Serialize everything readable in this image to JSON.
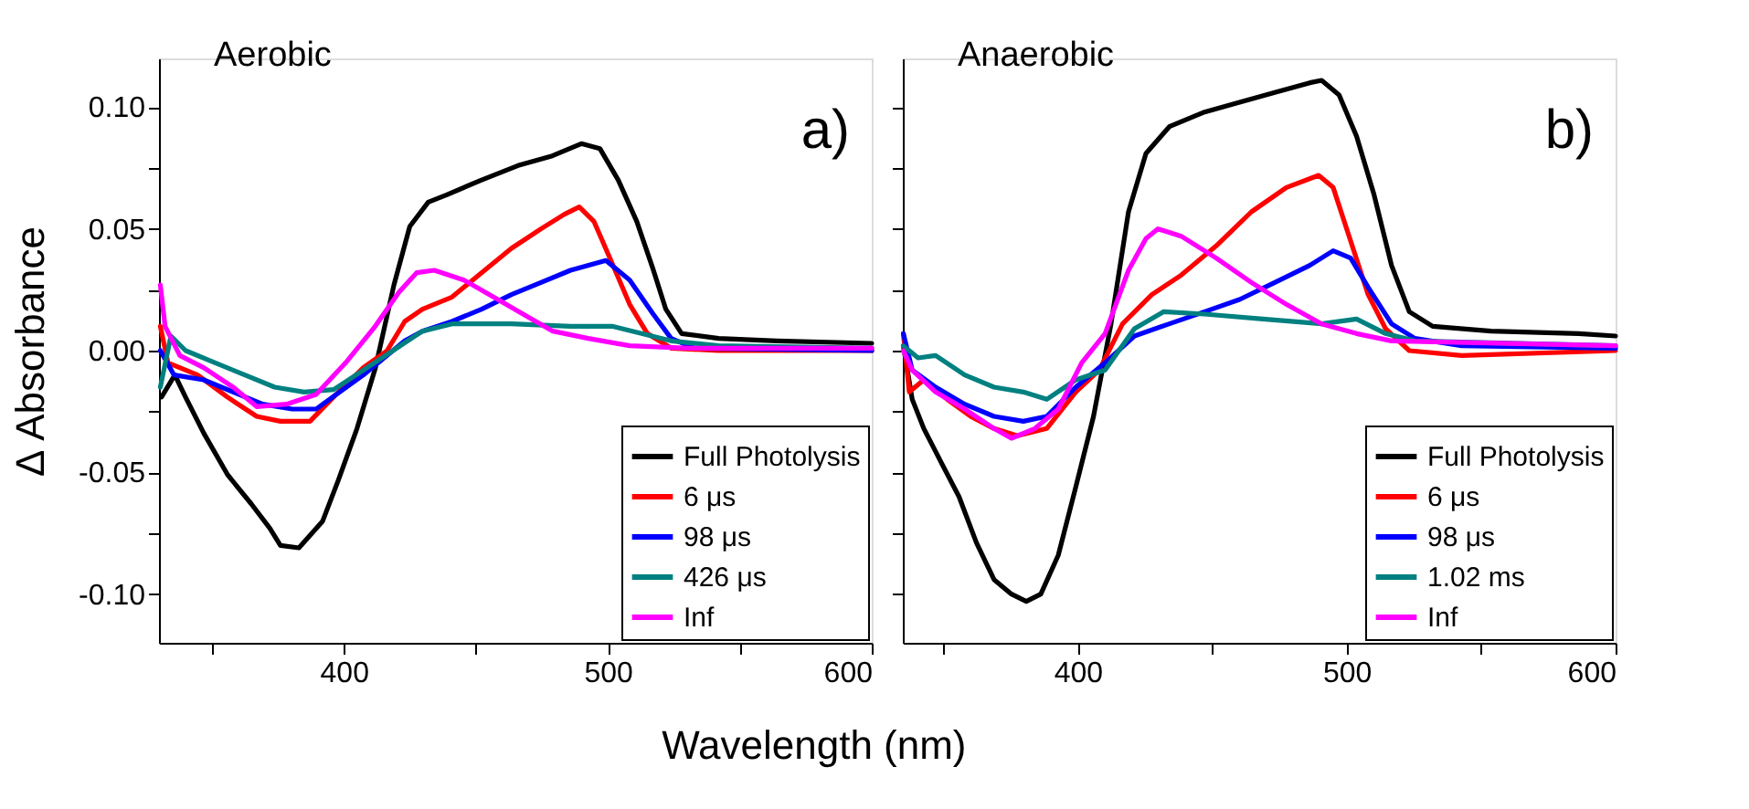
{
  "chart_data": [
    {
      "type": "line",
      "xlabel": "Wavelength (nm)",
      "ylabel": "Δ Absorbance",
      "annotations": [
        "Aerobic",
        "a)"
      ],
      "xlim": [
        330,
        600
      ],
      "xticks": [
        {
          "value": 350,
          "label": null
        },
        400,
        {
          "value": 450,
          "label": null
        },
        500,
        {
          "value": 550,
          "label": null
        },
        600
      ],
      "ylim": [
        -0.12,
        0.12
      ],
      "yticks": [
        {
          "value": -0.1,
          "label": "-0.10"
        },
        {
          "value": -0.075,
          "label": null
        },
        {
          "value": -0.05,
          "label": "-0.05"
        },
        {
          "value": -0.025,
          "label": null
        },
        {
          "value": 0,
          "label": "0.00"
        },
        {
          "value": 0.025,
          "label": null
        },
        {
          "value": 0.05,
          "label": "0.05"
        },
        {
          "value": 0.075,
          "label": null
        },
        {
          "value": 0.1,
          "label": "0.10"
        }
      ],
      "grid": false,
      "legend": "bottom right",
      "line_style": "solid",
      "marker": "none",
      "series": [
        {
          "name": "Full Photolysis",
          "color": "#000000",
          "x": [
            331,
            336,
            340,
            347,
            356,
            365,
            372,
            376,
            383,
            392,
            398,
            405,
            412,
            419,
            425,
            432,
            439,
            452,
            466,
            479,
            490,
            497,
            504,
            511,
            517,
            522,
            528,
            542,
            564,
            600
          ],
          "values": [
            -0.019,
            -0.01,
            -0.019,
            -0.034,
            -0.051,
            -0.063,
            -0.073,
            -0.08,
            -0.081,
            -0.07,
            -0.053,
            -0.032,
            -0.007,
            0.027,
            0.051,
            0.061,
            0.064,
            0.07,
            0.076,
            0.08,
            0.085,
            0.083,
            0.07,
            0.053,
            0.034,
            0.017,
            0.007,
            0.005,
            0.004,
            0.003
          ]
        },
        {
          "name": "6 μs",
          "color": "#ff0000",
          "x": [
            330.5,
            333.4,
            344.6,
            355.8,
            367,
            376,
            387.2,
            396.2,
            407.4,
            416.4,
            423.1,
            429.8,
            441,
            452.2,
            463.5,
            474.7,
            483.6,
            489.2,
            494.8,
            501.6,
            508.3,
            515,
            524,
            541.9,
            600
          ],
          "values": [
            0.01,
            -0.005,
            -0.01,
            -0.019,
            -0.027,
            -0.029,
            -0.029,
            -0.019,
            -0.007,
            0.0,
            0.012,
            0.017,
            0.022,
            0.032,
            0.042,
            0.05,
            0.056,
            0.059,
            0.053,
            0.036,
            0.019,
            0.007,
            0.001,
            0.0,
            0.0
          ]
        },
        {
          "name": "98 μs",
          "color": "#0000ff",
          "x": [
            330.5,
            335.7,
            346.9,
            358.1,
            369.3,
            380.5,
            389.5,
            398.4,
            407.4,
            416.4,
            423.1,
            429.8,
            441,
            452.2,
            463.5,
            474.7,
            485.9,
            499.3,
            508.3,
            517.2,
            524,
            532.9,
            600
          ],
          "values": [
            0.0,
            -0.01,
            -0.012,
            -0.017,
            -0.022,
            -0.024,
            -0.024,
            -0.017,
            -0.01,
            -0.002,
            0.004,
            0.008,
            0.012,
            0.017,
            0.023,
            0.028,
            0.033,
            0.037,
            0.029,
            0.015,
            0.005,
            0.001,
            0.0
          ]
        },
        {
          "name": "426 μs",
          "color": "#008080",
          "x": [
            330.5,
            334.5,
            340.1,
            351.3,
            362.5,
            373.8,
            385,
            396.2,
            407.4,
            418.6,
            429.8,
            441,
            463.5,
            485.9,
            501.6,
            512.8,
            524,
            541.9,
            600
          ],
          "values": [
            -0.015,
            0.006,
            0.0,
            -0.005,
            -0.01,
            -0.015,
            -0.017,
            -0.016,
            -0.008,
            0.0,
            0.008,
            0.011,
            0.011,
            0.01,
            0.01,
            0.007,
            0.004,
            0.002,
            0.001
          ]
        },
        {
          "name": "Inf",
          "color": "#ff00ff",
          "x": [
            330.5,
            332.3,
            337.9,
            346.9,
            358.1,
            367,
            378.3,
            389.5,
            400.7,
            411.9,
            420.9,
            427.6,
            434.3,
            445.5,
            456.7,
            467.9,
            479.2,
            492.6,
            508.3,
            530.7,
            600
          ],
          "values": [
            0.027,
            0.01,
            -0.002,
            -0.007,
            -0.015,
            -0.023,
            -0.022,
            -0.018,
            -0.005,
            0.01,
            0.024,
            0.032,
            0.033,
            0.029,
            0.022,
            0.015,
            0.008,
            0.005,
            0.002,
            0.001,
            0.001
          ]
        }
      ]
    },
    {
      "type": "line",
      "annotations": [
        "Anaerobic",
        "b)"
      ],
      "tick_labels": "x",
      "xlim": [
        335,
        600
      ],
      "xticks": [
        {
          "value": 350,
          "label": null
        },
        400,
        {
          "value": 450,
          "label": null
        },
        500,
        {
          "value": 550,
          "label": null
        },
        600
      ],
      "ylim": [
        -0.12,
        0.12
      ],
      "yticks": [
        {
          "value": -0.1,
          "label": null
        },
        {
          "value": -0.075,
          "label": null
        },
        {
          "value": -0.05,
          "label": null
        },
        {
          "value": -0.025,
          "label": null
        },
        {
          "value": 0,
          "label": null
        },
        {
          "value": 0.025,
          "label": null
        },
        {
          "value": 0.05,
          "label": null
        },
        {
          "value": 0.075,
          "label": null
        },
        {
          "value": 0.1,
          "label": null
        }
      ],
      "grid": false,
      "legend": "bottom right",
      "line_style": "solid",
      "marker": "none",
      "series": [
        {
          "name": "Full Photolysis",
          "color": "#000000",
          "x": [
            335.2,
            338.5,
            342.8,
            349.3,
            355.9,
            362.4,
            368.9,
            375.4,
            380.9,
            386.3,
            392.8,
            399.3,
            405.9,
            412.4,
            418.9,
            425.4,
            434.1,
            447.2,
            460.2,
            473.3,
            486.3,
            490.7,
            497.2,
            503.7,
            510.2,
            516.7,
            523.3,
            532,
            553.7,
            586.3,
            600
          ],
          "values": [
            0.002,
            -0.02,
            -0.032,
            -0.046,
            -0.06,
            -0.079,
            -0.094,
            -0.1,
            -0.103,
            -0.1,
            -0.084,
            -0.056,
            -0.027,
            0.011,
            0.057,
            0.081,
            0.092,
            0.098,
            0.102,
            0.106,
            0.11,
            0.111,
            0.105,
            0.088,
            0.064,
            0.035,
            0.016,
            0.01,
            0.008,
            0.007,
            0.006
          ]
        },
        {
          "name": "6 μs",
          "color": "#ff0000",
          "x": [
            335.2,
            337.4,
            342.8,
            351.5,
            360.2,
            368.9,
            377.6,
            388.5,
            399.3,
            408,
            416.7,
            427.6,
            438.5,
            451.5,
            464.6,
            477.6,
            489.6,
            495,
            501.5,
            508,
            514.5,
            523.3,
            542.8,
            600
          ],
          "values": [
            0.007,
            -0.017,
            -0.012,
            -0.02,
            -0.027,
            -0.032,
            -0.035,
            -0.032,
            -0.017,
            -0.008,
            0.011,
            0.023,
            0.031,
            0.043,
            0.057,
            0.067,
            0.072,
            0.067,
            0.045,
            0.023,
            0.009,
            0.0,
            -0.002,
            0.0
          ]
        },
        {
          "name": "98 μs",
          "color": "#0000ff",
          "x": [
            335.2,
            338.5,
            347.2,
            358,
            368.9,
            379.8,
            388.5,
            399.3,
            410.2,
            421.1,
            434.1,
            447.2,
            460.2,
            473.3,
            486.3,
            495,
            501.5,
            508,
            516.7,
            525.4,
            542.8,
            600
          ],
          "values": [
            0.007,
            -0.008,
            -0.015,
            -0.022,
            -0.027,
            -0.029,
            -0.027,
            -0.015,
            -0.005,
            0.006,
            0.011,
            0.016,
            0.021,
            0.028,
            0.035,
            0.041,
            0.038,
            0.026,
            0.011,
            0.005,
            0.002,
            0.001
          ]
        },
        {
          "name": "1.02 ms",
          "color": "#008080",
          "x": [
            335.2,
            340.7,
            347.2,
            358,
            368.9,
            379.8,
            388.5,
            399.3,
            410.2,
            421.1,
            432,
            447.2,
            468.9,
            490.7,
            503.7,
            514.5,
            525.4,
            600
          ],
          "values": [
            0.002,
            -0.003,
            -0.002,
            -0.01,
            -0.015,
            -0.017,
            -0.02,
            -0.012,
            -0.008,
            0.009,
            0.016,
            0.015,
            0.013,
            0.011,
            0.013,
            0.007,
            0.004,
            0.002
          ]
        },
        {
          "name": "Inf",
          "color": "#ff00ff",
          "x": [
            335.2,
            338.5,
            347.2,
            358,
            368.9,
            375.4,
            384.1,
            392.8,
            401.5,
            410.2,
            418.9,
            425.4,
            429.8,
            438.5,
            451.5,
            464.6,
            477.6,
            490.7,
            503.7,
            516.7,
            600
          ],
          "values": [
            0.0,
            -0.008,
            -0.017,
            -0.024,
            -0.032,
            -0.036,
            -0.032,
            -0.024,
            -0.005,
            0.007,
            0.033,
            0.046,
            0.05,
            0.047,
            0.038,
            0.028,
            0.019,
            0.011,
            0.007,
            0.004,
            0.002
          ]
        }
      ]
    }
  ]
}
